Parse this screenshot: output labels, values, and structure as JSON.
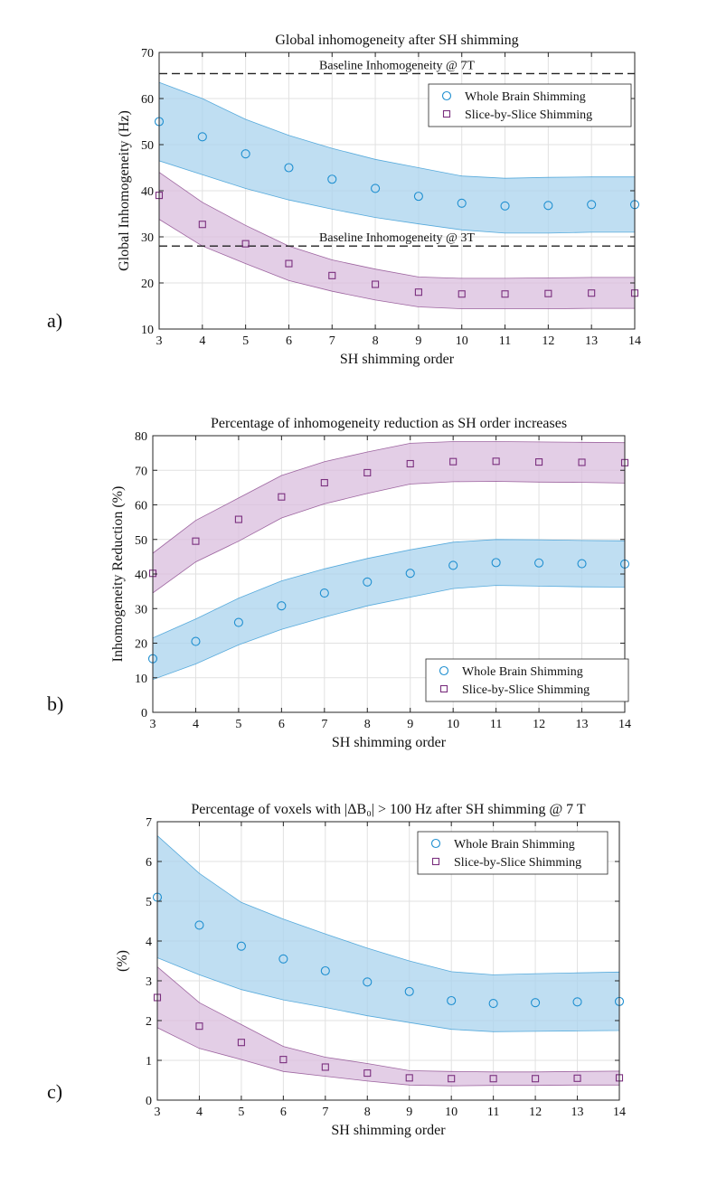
{
  "chart_data": [
    {
      "type": "scatter",
      "panel_label": "a)",
      "title": "Global inhomogeneity after SH shimming",
      "xlabel": "SH shimming order",
      "ylabel": "Global Inhomogeneity (Hz)",
      "xlim": [
        3,
        14
      ],
      "ylim": [
        10,
        70
      ],
      "xticks": [
        3,
        4,
        5,
        6,
        7,
        8,
        9,
        10,
        11,
        12,
        13,
        14
      ],
      "yticks": [
        10,
        20,
        30,
        40,
        50,
        60,
        70
      ],
      "grid": true,
      "legend_position": "top-right",
      "x": [
        3,
        4,
        5,
        6,
        7,
        8,
        9,
        10,
        11,
        12,
        13,
        14
      ],
      "series": [
        {
          "name": "Whole Brain Shimming",
          "marker": "circle",
          "color": "#1f8fd0",
          "fill": "#a9d3ee",
          "values": [
            55,
            51.7,
            48,
            45,
            42.5,
            40.5,
            38.8,
            37.3,
            36.7,
            36.8,
            37,
            37
          ],
          "upper": [
            63.5,
            60,
            55.5,
            52,
            49.2,
            46.8,
            45,
            43.2,
            42.7,
            42.9,
            43,
            43
          ],
          "lower": [
            46.5,
            43.5,
            40.5,
            38,
            36,
            34.2,
            32.8,
            31.5,
            30.8,
            30.8,
            31,
            31
          ]
        },
        {
          "name": "Slice-by-Slice Shimming",
          "marker": "square",
          "color": "#7a2f7e",
          "fill": "#d9bddd",
          "values": [
            39,
            32.7,
            28.5,
            24.2,
            21.6,
            19.7,
            18,
            17.6,
            17.6,
            17.7,
            17.8,
            17.8
          ],
          "upper": [
            44,
            37.5,
            32.5,
            28,
            25,
            23,
            21.3,
            21,
            21,
            21.1,
            21.2,
            21.2
          ],
          "lower": [
            33.8,
            28,
            24.2,
            20.5,
            18.2,
            16.3,
            14.8,
            14.4,
            14.4,
            14.4,
            14.5,
            14.5
          ]
        }
      ],
      "annotations": [
        {
          "y": 65.4,
          "text": "Baseline Inhomogeneity @ 7T"
        },
        {
          "y": 28,
          "text": "Baseline Inhomogeneity @ 3T"
        }
      ]
    },
    {
      "type": "scatter",
      "panel_label": "b)",
      "title": "Percentage of inhomogeneity reduction as SH order increases",
      "xlabel": "SH shimming order",
      "ylabel": "Inhomogeneity Reduction (%)",
      "xlim": [
        3,
        14
      ],
      "ylim": [
        0,
        80
      ],
      "xticks": [
        3,
        4,
        5,
        6,
        7,
        8,
        9,
        10,
        11,
        12,
        13,
        14
      ],
      "yticks": [
        0,
        10,
        20,
        30,
        40,
        50,
        60,
        70,
        80
      ],
      "grid": true,
      "legend_position": "bottom-right",
      "x": [
        3,
        4,
        5,
        6,
        7,
        8,
        9,
        10,
        11,
        12,
        13,
        14
      ],
      "series": [
        {
          "name": "Whole Brain Shimming",
          "marker": "circle",
          "color": "#1f8fd0",
          "fill": "#a9d3ee",
          "values": [
            15.5,
            20.5,
            26,
            30.8,
            34.5,
            37.7,
            40.2,
            42.5,
            43.3,
            43.2,
            43,
            42.9
          ],
          "upper": [
            21.5,
            27,
            33,
            38,
            41.5,
            44.5,
            47,
            49.2,
            50,
            49.9,
            49.7,
            49.6
          ],
          "lower": [
            9.5,
            14,
            19.5,
            24,
            27.5,
            30.8,
            33.3,
            35.8,
            36.7,
            36.5,
            36.3,
            36.2
          ]
        },
        {
          "name": "Slice-by-Slice Shimming",
          "marker": "square",
          "color": "#7a2f7e",
          "fill": "#d9bddd",
          "values": [
            40.2,
            49.5,
            55.8,
            62.3,
            66.4,
            69.3,
            71.9,
            72.5,
            72.6,
            72.4,
            72.3,
            72.2
          ],
          "upper": [
            46,
            55.5,
            62,
            68.5,
            72.5,
            75.3,
            77.8,
            78.3,
            78.3,
            78.2,
            78.1,
            78
          ],
          "lower": [
            34.5,
            43.5,
            49.5,
            56.2,
            60.3,
            63.3,
            66,
            66.7,
            66.8,
            66.6,
            66.5,
            66.3
          ]
        }
      ]
    },
    {
      "type": "scatter",
      "panel_label": "c)",
      "title": "Percentage of voxels with |ΔB₀| > 100 Hz after SH shimming @ 7 T",
      "xlabel": "SH shimming order",
      "ylabel": "(%)",
      "xlim": [
        3,
        14
      ],
      "ylim": [
        0,
        7
      ],
      "xticks": [
        3,
        4,
        5,
        6,
        7,
        8,
        9,
        10,
        11,
        12,
        13,
        14
      ],
      "yticks": [
        0,
        1,
        2,
        3,
        4,
        5,
        6,
        7
      ],
      "grid": true,
      "legend_position": "top-right",
      "x": [
        3,
        4,
        5,
        6,
        7,
        8,
        9,
        10,
        11,
        12,
        13,
        14
      ],
      "series": [
        {
          "name": "Whole Brain Shimming",
          "marker": "circle",
          "color": "#1f8fd0",
          "fill": "#a9d3ee",
          "values": [
            5.1,
            4.4,
            3.87,
            3.55,
            3.25,
            2.97,
            2.73,
            2.5,
            2.43,
            2.45,
            2.47,
            2.48
          ],
          "upper": [
            6.65,
            5.7,
            4.97,
            4.55,
            4.18,
            3.82,
            3.5,
            3.23,
            3.15,
            3.18,
            3.2,
            3.22
          ],
          "lower": [
            3.58,
            3.15,
            2.78,
            2.52,
            2.33,
            2.12,
            1.95,
            1.78,
            1.72,
            1.73,
            1.74,
            1.75
          ]
        },
        {
          "name": "Slice-by-Slice Shimming",
          "marker": "square",
          "color": "#7a2f7e",
          "fill": "#d9bddd",
          "values": [
            2.58,
            1.86,
            1.45,
            1.02,
            0.83,
            0.68,
            0.56,
            0.54,
            0.54,
            0.54,
            0.55,
            0.56
          ],
          "upper": [
            3.35,
            2.45,
            1.9,
            1.35,
            1.08,
            0.92,
            0.74,
            0.72,
            0.71,
            0.71,
            0.72,
            0.73
          ],
          "lower": [
            1.82,
            1.3,
            1.02,
            0.72,
            0.6,
            0.48,
            0.38,
            0.36,
            0.37,
            0.37,
            0.38,
            0.38
          ]
        }
      ]
    }
  ]
}
